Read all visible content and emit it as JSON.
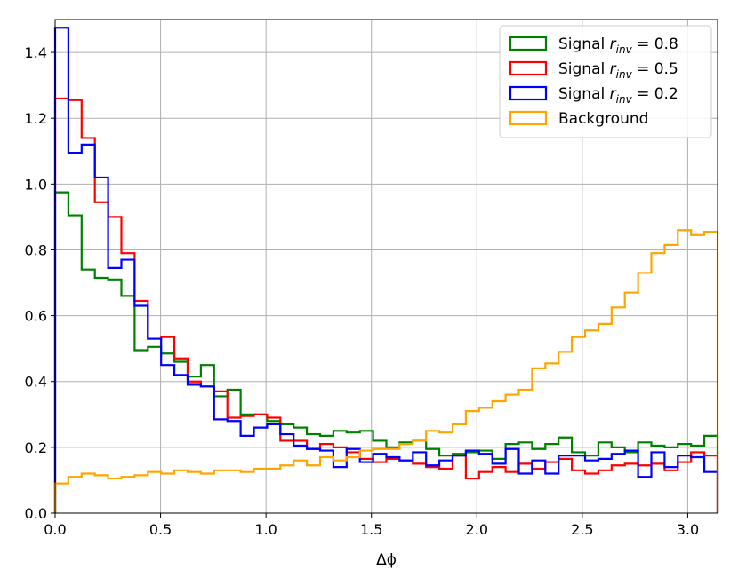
{
  "chart_data": {
    "type": "histogram-step",
    "xlabel": "Δϕ",
    "ylabel": "",
    "xlim": [
      0,
      3.1416
    ],
    "ylim": [
      0,
      1.5
    ],
    "xticks": [
      0.0,
      0.5,
      1.0,
      1.5,
      2.0,
      2.5,
      3.0
    ],
    "xtick_labels": [
      "0.0",
      "0.5",
      "1.0",
      "1.5",
      "2.0",
      "2.5",
      "3.0"
    ],
    "yticks": [
      0.0,
      0.2,
      0.4,
      0.6,
      0.8,
      1.0,
      1.2,
      1.4
    ],
    "ytick_labels": [
      "0.0",
      "0.2",
      "0.4",
      "0.6",
      "0.8",
      "1.0",
      "1.2",
      "1.4"
    ],
    "grid": true,
    "legend_position": "top-right",
    "bins": 50,
    "bin_range": [
      0,
      3.1416
    ],
    "series": [
      {
        "name": "Signal r_inv = 0.8",
        "legend_main": "Signal ",
        "legend_var": "r",
        "legend_sub": "inv",
        "legend_value": " = 0.8",
        "color": "#008000",
        "values": [
          0.975,
          0.905,
          0.74,
          0.715,
          0.71,
          0.66,
          0.495,
          0.505,
          0.485,
          0.46,
          0.415,
          0.45,
          0.355,
          0.375,
          0.3,
          0.3,
          0.28,
          0.27,
          0.26,
          0.24,
          0.235,
          0.25,
          0.245,
          0.25,
          0.22,
          0.2,
          0.215,
          0.22,
          0.195,
          0.175,
          0.18,
          0.185,
          0.19,
          0.165,
          0.21,
          0.215,
          0.195,
          0.21,
          0.23,
          0.185,
          0.175,
          0.215,
          0.2,
          0.185,
          0.215,
          0.205,
          0.2,
          0.21,
          0.205,
          0.235,
          0.165
        ]
      },
      {
        "name": "Signal r_inv = 0.5",
        "legend_main": "Signal ",
        "legend_var": "r",
        "legend_sub": "inv",
        "legend_value": " = 0.5",
        "color": "#ff0000",
        "values": [
          1.26,
          1.255,
          1.14,
          0.945,
          0.9,
          0.79,
          0.645,
          0.53,
          0.535,
          0.47,
          0.4,
          0.385,
          0.37,
          0.29,
          0.295,
          0.3,
          0.29,
          0.22,
          0.22,
          0.195,
          0.21,
          0.2,
          0.185,
          0.165,
          0.155,
          0.165,
          0.16,
          0.15,
          0.14,
          0.135,
          0.175,
          0.105,
          0.125,
          0.14,
          0.125,
          0.15,
          0.135,
          0.155,
          0.165,
          0.13,
          0.12,
          0.13,
          0.145,
          0.15,
          0.145,
          0.15,
          0.13,
          0.155,
          0.185,
          0.175,
          0.115
        ]
      },
      {
        "name": "Signal r_inv = 0.2",
        "legend_main": "Signal ",
        "legend_var": "r",
        "legend_sub": "inv",
        "legend_value": " = 0.2",
        "color": "#0000ff",
        "values": [
          1.475,
          1.095,
          1.12,
          1.02,
          0.745,
          0.77,
          0.63,
          0.53,
          0.45,
          0.42,
          0.39,
          0.385,
          0.285,
          0.28,
          0.235,
          0.26,
          0.27,
          0.24,
          0.205,
          0.195,
          0.19,
          0.14,
          0.195,
          0.155,
          0.18,
          0.17,
          0.16,
          0.185,
          0.145,
          0.16,
          0.175,
          0.19,
          0.18,
          0.15,
          0.195,
          0.12,
          0.16,
          0.12,
          0.175,
          0.175,
          0.16,
          0.165,
          0.18,
          0.19,
          0.11,
          0.185,
          0.14,
          0.175,
          0.17,
          0.125,
          0.145
        ]
      },
      {
        "name": "Background",
        "legend_main": "Background",
        "legend_var": "",
        "legend_sub": "",
        "legend_value": "",
        "color": "#ffa500",
        "values": [
          0.09,
          0.11,
          0.12,
          0.115,
          0.105,
          0.11,
          0.115,
          0.125,
          0.12,
          0.13,
          0.125,
          0.12,
          0.13,
          0.13,
          0.125,
          0.135,
          0.135,
          0.145,
          0.16,
          0.145,
          0.17,
          0.16,
          0.17,
          0.19,
          0.195,
          0.195,
          0.21,
          0.22,
          0.25,
          0.245,
          0.27,
          0.31,
          0.32,
          0.34,
          0.36,
          0.375,
          0.44,
          0.455,
          0.49,
          0.535,
          0.555,
          0.575,
          0.625,
          0.67,
          0.73,
          0.79,
          0.815,
          0.86,
          0.845,
          0.855,
          0.9
        ]
      }
    ]
  }
}
